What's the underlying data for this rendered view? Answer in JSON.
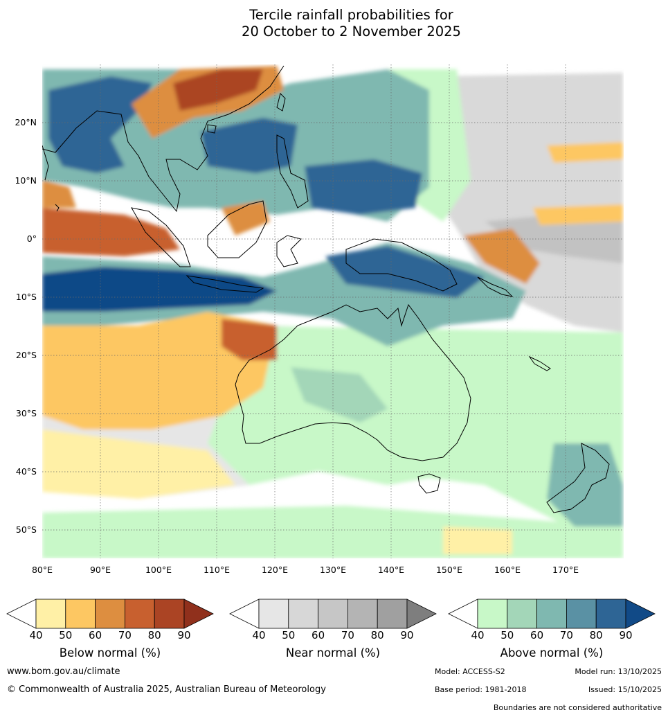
{
  "title": {
    "line1": "Tercile rainfall probabilities for",
    "line2": "20 October to 2 November 2025"
  },
  "map": {
    "lat_labels": [
      "20°N",
      "10°N",
      "0°",
      "10°S",
      "20°S",
      "30°S",
      "40°S",
      "50°S"
    ],
    "lon_labels": [
      "80°E",
      "90°E",
      "100°E",
      "110°E",
      "120°E",
      "130°E",
      "140°E",
      "150°E",
      "160°E",
      "170°E"
    ]
  },
  "colorbars": [
    {
      "id": "below",
      "title": "Below normal (%)",
      "ticks": [
        "40",
        "50",
        "60",
        "70",
        "80",
        "90"
      ],
      "colors": [
        "#ffffff",
        "#fff0a6",
        "#fdc762",
        "#dd8e40",
        "#c8602f",
        "#ab4424",
        "#90301c"
      ]
    },
    {
      "id": "near",
      "title": "Near normal (%)",
      "ticks": [
        "40",
        "50",
        "60",
        "70",
        "80",
        "90"
      ],
      "colors": [
        "#ffffff",
        "#e6e6e6",
        "#d7d7d7",
        "#c6c6c6",
        "#b4b4b4",
        "#a0a0a0",
        "#7e7e7e"
      ]
    },
    {
      "id": "above",
      "title": "Above normal (%)",
      "ticks": [
        "40",
        "50",
        "60",
        "70",
        "80",
        "90"
      ],
      "colors": [
        "#ffffff",
        "#c8f8c8",
        "#a3d6b8",
        "#7fb8b0",
        "#5a91a4",
        "#2e6595",
        "#114a87"
      ]
    }
  ],
  "footer": {
    "website": "www.bom.gov.au/climate",
    "copyright": "© Commonwealth of Australia 2025, Australian Bureau of Meteorology",
    "model": "Model: ACCESS-S2",
    "model_run": "Model run: 13/10/2025",
    "base_period": "Base period: 1981-2018",
    "issued": "Issued: 15/10/2025",
    "disclaimer": "Boundaries are not considered authoritative"
  }
}
